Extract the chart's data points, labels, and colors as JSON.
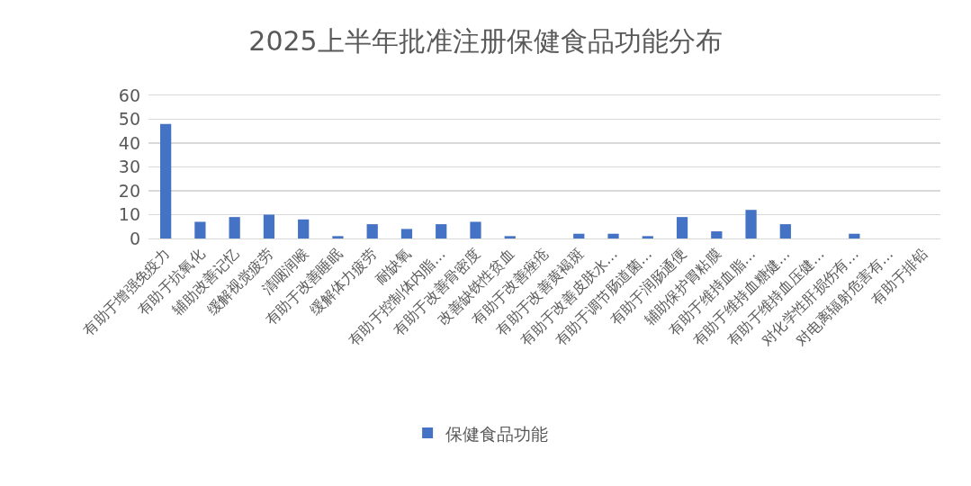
{
  "chart_data": {
    "type": "bar",
    "title": "2025上半年批准注册保健食品功能分布",
    "categories": [
      "有助于增强免疫力",
      "有助于抗氧化",
      "辅助改善记忆",
      "缓解视觉疲劳",
      "清咽润喉",
      "有助于改善睡眠",
      "缓解体力疲劳",
      "耐缺氧",
      "有助于控制体内脂…",
      "有助于改善骨密度",
      "改善缺铁性贫血",
      "有助于改善痤疮",
      "有助于改善黄褐斑",
      "有助于改善皮肤水…",
      "有助于调节肠道菌…",
      "有助于润肠通便",
      "辅助保护胃粘膜",
      "有助于维持血脂…",
      "有助于维持血糖健…",
      "有助于维持血压健…",
      "对化学性肝损伤有…",
      "对电离辐射危害有…",
      "有助于排铅"
    ],
    "series": [
      {
        "name": "保健食品功能",
        "color": "#4472c4",
        "values": [
          48,
          7,
          9,
          10,
          8,
          1,
          6,
          4,
          6,
          7,
          1,
          0,
          2,
          2,
          1,
          9,
          3,
          12,
          6,
          0,
          2,
          0,
          0
        ]
      }
    ],
    "ylim": [
      0,
      60
    ],
    "yticks": [
      0,
      10,
      20,
      30,
      40,
      50,
      60
    ],
    "grid": "y",
    "legend": "bottom"
  }
}
